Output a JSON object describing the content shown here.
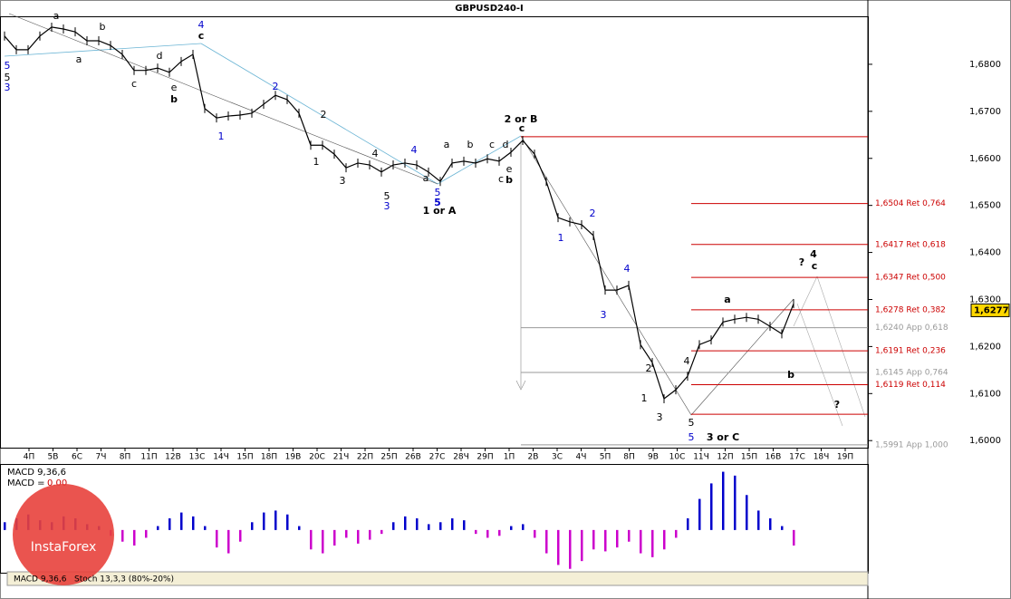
{
  "chart_data": [
    {
      "type": "line",
      "title": "GBPUSD240-I",
      "values": [
        1.686,
        1.6831,
        1.6831,
        1.686,
        1.6879,
        1.6875,
        1.6869,
        1.685,
        1.685,
        1.684,
        1.6821,
        1.6787,
        1.6787,
        1.6792,
        1.6783,
        1.6806,
        1.6821,
        1.6706,
        1.6686,
        1.669,
        1.6692,
        1.6696,
        1.6715,
        1.6734,
        1.6725,
        1.6696,
        1.6628,
        1.6628,
        1.6609,
        1.658,
        1.659,
        1.6586,
        1.6571,
        1.6586,
        1.659,
        1.6586,
        1.6571,
        1.6551,
        1.659,
        1.6594,
        1.659,
        1.6599,
        1.6594,
        1.6613,
        1.6638,
        1.6609,
        1.6551,
        1.6474,
        1.6465,
        1.6459,
        1.6436,
        1.632,
        1.632,
        1.633,
        1.6204,
        1.6166,
        1.6089,
        1.6108,
        1.6137,
        1.6204,
        1.6214,
        1.6252,
        1.6258,
        1.6262,
        1.6258,
        1.6243,
        1.6227,
        1.6291
      ],
      "color": "#000000",
      "x_labels": [
        "4П",
        "5В",
        "6С",
        "7Ч",
        "8П",
        "11П",
        "12В",
        "13С",
        "14Ч",
        "15П",
        "18П",
        "19В",
        "20С",
        "21Ч",
        "22П",
        "25П",
        "26В",
        "27С",
        "28Ч",
        "29П",
        "1П",
        "2В",
        "3С",
        "4Ч",
        "5П",
        "8П",
        "9В",
        "10С",
        "11Ч",
        "12П",
        "15П",
        "16В",
        "17С",
        "18Ч",
        "19П"
      ],
      "ylim": [
        1.5985,
        1.6902
      ],
      "yticks": [
        {
          "value": 1.6,
          "label": "1,6000"
        },
        {
          "value": 1.61,
          "label": "1,6100"
        },
        {
          "value": 1.62,
          "label": "1,6200"
        },
        {
          "value": 1.63,
          "label": "1,6300"
        },
        {
          "value": 1.64,
          "label": "1,6400"
        },
        {
          "value": 1.65,
          "label": "1,6500"
        },
        {
          "value": 1.66,
          "label": "1,6600"
        },
        {
          "value": 1.67,
          "label": "1,6700"
        },
        {
          "value": 1.68,
          "label": "1,6800"
        }
      ],
      "levels": [
        {
          "value": 1.6646,
          "color": "#cc0000"
        },
        {
          "value": 1.6504,
          "label": "1,6504 Ret 0,764",
          "color": "#cc0000"
        },
        {
          "value": 1.6417,
          "label": "1,6417 Ret 0,618",
          "color": "#cc0000"
        },
        {
          "value": 1.6347,
          "label": "1,6347 Ret 0,500",
          "color": "#cc0000"
        },
        {
          "value": 1.6278,
          "label": "1,6278 Ret 0,382",
          "color": "#cc0000"
        },
        {
          "value": 1.624,
          "label": "1,6240 App 0,618",
          "color": "#999999"
        },
        {
          "value": 1.6191,
          "label": "1,6191 Ret 0,236",
          "color": "#cc0000"
        },
        {
          "value": 1.6145,
          "label": "1,6145 App 0,764",
          "color": "#999999"
        },
        {
          "value": 1.6119,
          "label": "1,6119 Ret 0,114",
          "color": "#cc0000"
        },
        {
          "value": 1.6056,
          "color": "#cc0000"
        },
        {
          "value": 1.5991,
          "label": "1,5991 App 1,000",
          "color": "#999999"
        }
      ],
      "last": {
        "value": 1.6277,
        "label": "1,6277"
      },
      "annotations": [
        "5",
        "5",
        "3",
        "a",
        "b",
        "a",
        "c",
        "d",
        "e",
        "b",
        "4",
        "c",
        "1",
        "2",
        "2",
        "1",
        "3",
        "4",
        "5",
        "3",
        "4",
        "5",
        "5",
        "a",
        "1 or A",
        "a",
        "b",
        "c",
        "d",
        "c",
        "e",
        "b",
        "2 or B",
        "c",
        "1",
        "2",
        "3",
        "4",
        "2",
        "1",
        "3",
        "4",
        "5",
        "5",
        "3 or C",
        "a",
        "b",
        "?",
        "4",
        "c",
        "?"
      ]
    },
    {
      "type": "histogram-macd",
      "title": "MACD 9,36,6",
      "value_text": "MACD =",
      "current": {
        "value": 0,
        "label": "0.00"
      },
      "values": [
        0.0004,
        0.0006,
        0.0008,
        0.0005,
        0.0004,
        0.0007,
        0.0006,
        0.0003,
        0.0002,
        -0.0003,
        -0.0006,
        -0.0008,
        -0.0004,
        0.0002,
        0.0006,
        0.0009,
        0.0007,
        0.0002,
        -0.0009,
        -0.0012,
        -0.0006,
        0.0004,
        0.0009,
        0.001,
        0.0008,
        0.0002,
        -0.001,
        -0.0012,
        -0.0008,
        -0.0004,
        -0.0007,
        -0.0005,
        -0.0002,
        0.0004,
        0.0007,
        0.0006,
        0.0003,
        0.0004,
        0.0006,
        0.0005,
        -0.0002,
        -0.0004,
        -0.0003,
        0.0002,
        0.0003,
        -0.0004,
        -0.0012,
        -0.0018,
        -0.002,
        -0.0016,
        -0.001,
        -0.0011,
        -0.0009,
        -0.0006,
        -0.0012,
        -0.0014,
        -0.001,
        -0.0004,
        0.0006,
        0.0016,
        0.0024,
        0.003,
        0.0028,
        0.0018,
        0.001,
        0.0006,
        0.0002,
        -0.0008
      ],
      "colors": {
        "positive": "#0000cc",
        "negative": "#cc00cc"
      },
      "ylim": [
        -0.0022,
        0.0034
      ],
      "tabs": [
        "MACD 9,36,6",
        "Stoch 13,3,3 (80%-20%)"
      ],
      "logo": "InstaForex"
    }
  ]
}
